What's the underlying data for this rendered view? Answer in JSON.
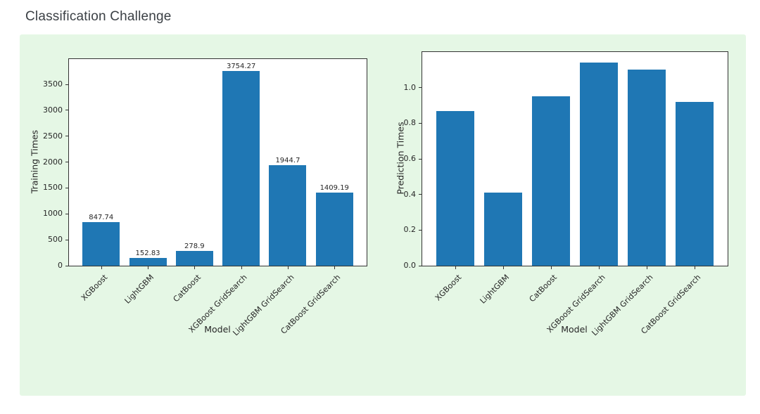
{
  "page": {
    "title": "Classification Challenge"
  },
  "colors": {
    "page_bg": "#ffffff",
    "panel_bg": "#e5f7e5",
    "bar": "#1f77b4",
    "axis": "#333333",
    "tick_text": "#262626",
    "title_text": "#3b4045"
  },
  "chart_data": [
    {
      "type": "bar",
      "title": "",
      "xlabel": "Model",
      "ylabel": "Training Times",
      "categories": [
        "XGBoost",
        "LightGBM",
        "CatBoost",
        "XGBoost GridSearch",
        "LightGBM GridSearch",
        "CatBoost GridSearch"
      ],
      "values": [
        847.74,
        152.83,
        278.9,
        3754.27,
        1944.7,
        1409.19
      ],
      "bar_labels": [
        "847.74",
        "152.83",
        "278.9",
        "3754.27",
        "1944.7",
        "1409.19"
      ],
      "yticks": [
        {
          "v": 0,
          "label": "0"
        },
        {
          "v": 500,
          "label": "500"
        },
        {
          "v": 1000,
          "label": "1000"
        },
        {
          "v": 1500,
          "label": "1500"
        },
        {
          "v": 2000,
          "label": "2000"
        },
        {
          "v": 2500,
          "label": "2500"
        },
        {
          "v": 3000,
          "label": "3000"
        },
        {
          "v": 3500,
          "label": "3500"
        }
      ],
      "ylim": [
        0,
        3990
      ],
      "grid": false,
      "legend": null,
      "bar_color": "#1f77b4"
    },
    {
      "type": "bar",
      "title": "",
      "xlabel": "Model",
      "ylabel": "Prediction Times",
      "categories": [
        "XGBoost",
        "LightGBM",
        "CatBoost",
        "XGBoost GridSearch",
        "LightGBM GridSearch",
        "CatBoost GridSearch"
      ],
      "values": [
        0.87,
        0.41,
        0.95,
        1.14,
        1.1,
        0.92
      ],
      "bar_labels": null,
      "yticks": [
        {
          "v": 0,
          "label": "0.0"
        },
        {
          "v": 0.2,
          "label": "0.2"
        },
        {
          "v": 0.4,
          "label": "0.4"
        },
        {
          "v": 0.6,
          "label": "0.6"
        },
        {
          "v": 0.8,
          "label": "0.8"
        },
        {
          "v": 1.0,
          "label": "1.0"
        }
      ],
      "ylim": [
        0,
        1.2
      ],
      "grid": false,
      "legend": null,
      "bar_color": "#1f77b4"
    }
  ]
}
